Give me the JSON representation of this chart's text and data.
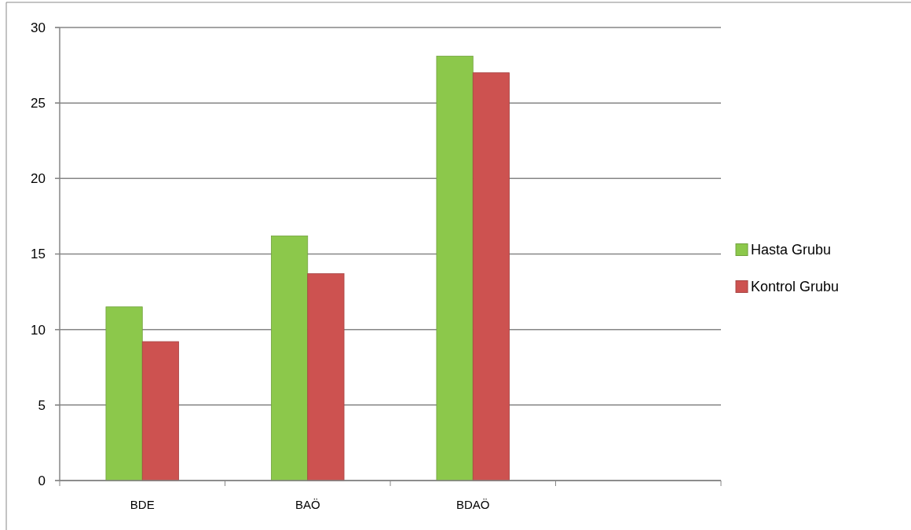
{
  "chart_data": {
    "type": "bar",
    "categories": [
      "BDE",
      "BAÖ",
      "BDAÖ",
      null
    ],
    "series": [
      {
        "name": "Hasta Grubu",
        "color": "#8cc84b",
        "values": [
          11.5,
          16.2,
          28.1,
          null
        ]
      },
      {
        "name": "Kontrol Grubu",
        "color": "#cd5250",
        "values": [
          9.2,
          13.7,
          27.0,
          null
        ]
      }
    ],
    "ylim": [
      0,
      30
    ],
    "yticks": [
      0,
      5,
      10,
      15,
      20,
      25,
      30
    ],
    "grid": "y",
    "legend": "right"
  }
}
